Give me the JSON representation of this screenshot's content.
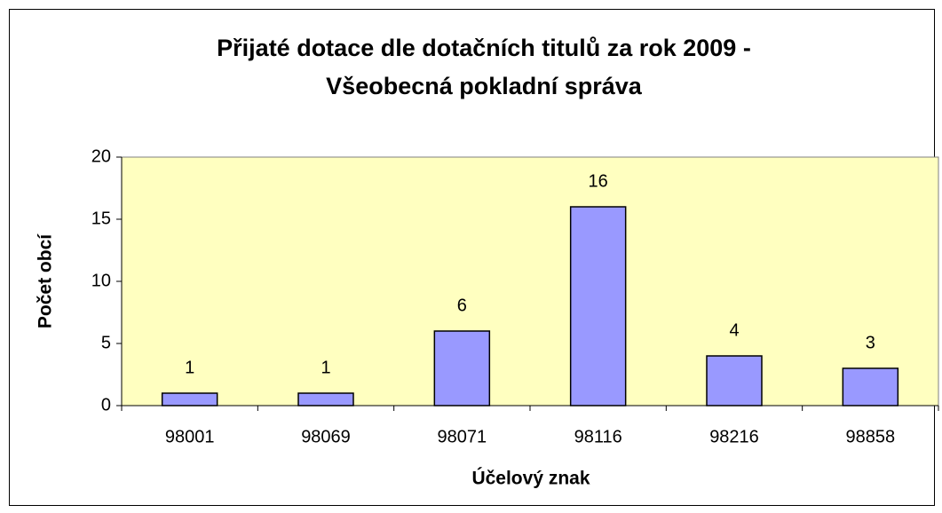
{
  "chart_data": {
    "type": "bar",
    "title": [
      "Přijaté dotace dle dotačních titulů za rok 2009 -",
      "Všeobecná pokladní správa"
    ],
    "x_label": "Účelový znak",
    "y_label": "Počet obcí",
    "categories": [
      "98001",
      "98069",
      "98071",
      "98116",
      "98216",
      "98858"
    ],
    "values": [
      1,
      1,
      6,
      16,
      4,
      3
    ],
    "color": "#9999ff",
    "plot_background": "#ffffc0",
    "ylim": [
      0,
      20
    ],
    "yticks": [
      0,
      5,
      10,
      15,
      20
    ],
    "grid": false
  }
}
